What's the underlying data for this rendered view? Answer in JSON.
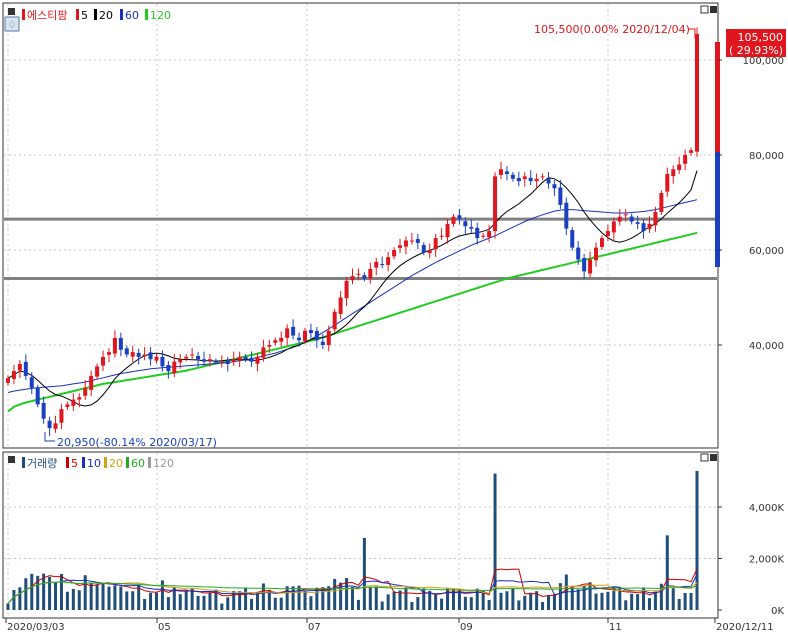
{
  "price_panel": {
    "stock_name": "에스티팜",
    "ma_legend": [
      {
        "label": "5",
        "color": "#000000"
      },
      {
        "label": "20",
        "color": "#000000"
      },
      {
        "label": "60",
        "color": "#1a2fbf"
      },
      {
        "label": "120",
        "color": "#22cc22"
      }
    ],
    "current_price_badge": "105,500",
    "current_change_badge": "( 29.93%)",
    "high_annotation": "105,500(0.00% 2020/12/04)",
    "low_annotation": "20,950(-80.14% 2020/03/17)"
  },
  "volume_panel": {
    "title": "거래량",
    "ma_legend": [
      {
        "label": "5",
        "color": "#cc0000"
      },
      {
        "label": "10",
        "color": "#1a2fbf"
      },
      {
        "label": "20",
        "color": "#d4a017"
      },
      {
        "label": "60",
        "color": "#22aa22"
      },
      {
        "label": "120",
        "color": "#999999"
      }
    ]
  },
  "x_axis": {
    "labels": [
      "2020/03/03",
      "05",
      "07",
      "09",
      "11",
      "2020/12/11"
    ]
  },
  "colors": {
    "up": "#e0161e",
    "down": "#1a3fbf",
    "ma120": "#22cc22",
    "ma60": "#1a2fbf",
    "ma20": "#000000",
    "volume_bar": "#1f4e79",
    "support_line": "#808080"
  },
  "chart_data": {
    "type": "candlestick",
    "period": {
      "start": "2020/03/03",
      "end": "2020/12/11"
    },
    "price_axis": {
      "ticks": [
        "40,000",
        "60,000",
        "80,000",
        "100,000"
      ],
      "range": [
        20000,
        110000
      ]
    },
    "volume_axis": {
      "ticks": [
        "0K",
        "2,000K",
        "4,000K"
      ],
      "range": [
        0,
        6000
      ]
    },
    "horizontal_lines": [
      66500,
      54000
    ],
    "price_close": [
      33000,
      34500,
      36000,
      33500,
      31000,
      27500,
      24500,
      22500,
      23500,
      26500,
      27500,
      28500,
      29000,
      31000,
      33500,
      35500,
      37500,
      38500,
      41500,
      39000,
      38000,
      38500,
      37500,
      38000,
      37000,
      37500,
      35500,
      34500,
      36500,
      37000,
      37500,
      38000,
      37000,
      36500,
      37000,
      36500,
      36500,
      36000,
      37000,
      37500,
      37000,
      36500,
      37500,
      39500,
      40000,
      41000,
      41500,
      43500,
      42000,
      41000,
      43000,
      42500,
      41000,
      40000,
      43000,
      47000,
      50000,
      53500,
      54500,
      55000,
      54000,
      56000,
      57500,
      57000,
      58500,
      60000,
      61000,
      62000,
      62000,
      61500,
      59500,
      60000,
      62500,
      63000,
      65500,
      67000,
      66500,
      65000,
      64500,
      62500,
      63000,
      64000,
      75500,
      77000,
      76000,
      75000,
      74500,
      75500,
      74500,
      75000,
      75500,
      74000,
      73000,
      69500,
      64500,
      60500,
      58000,
      55500,
      58000,
      60500,
      62500,
      64000,
      66000,
      67000,
      67500,
      66000,
      65500,
      64000,
      65500,
      68000,
      72000,
      76000,
      77000,
      78000,
      80000,
      81000,
      105500
    ],
    "ma_120": [
      26000,
      27000,
      27500,
      27900,
      28200,
      28500,
      28800,
      29100,
      29400,
      29700,
      30000,
      30300,
      30600,
      30900,
      31200,
      31500,
      31800,
      32000,
      32200,
      32400,
      32600,
      32800,
      33000,
      33200,
      33400,
      33600,
      33800,
      34000,
      34200,
      34400,
      34600,
      34900,
      35200,
      35500,
      35800,
      36100,
      36400,
      36700,
      37000,
      37300,
      37600,
      37900,
      38200,
      38500,
      38800,
      39100,
      39400,
      39700,
      40000,
      40300,
      40600,
      40900,
      41200,
      41600,
      42000,
      42400,
      42800,
      43200,
      43600,
      44000,
      44400,
      44800,
      45200,
      45600,
      46000,
      46400,
      46800,
      47200,
      47600,
      48000,
      48400,
      48800,
      49200,
      49600,
      50000,
      50400,
      50800,
      51200,
      51600,
      52000,
      52400,
      52800,
      53200,
      53600,
      54000,
      54300,
      54600,
      54900,
      55200,
      55500,
      55800,
      56100,
      56400,
      56700,
      57000,
      57300,
      57600,
      57900,
      58200,
      58500,
      58800,
      59100,
      59400,
      59700,
      60000,
      60300,
      60600,
      60900,
      61200,
      61500,
      61800,
      62100,
      62400,
      62700,
      63000,
      63300,
      63600
    ],
    "ma_60": [
      30000,
      30300,
      30500,
      30700,
      30900,
      31000,
      31100,
      31200,
      31300,
      31400,
      31600,
      31800,
      32000,
      32200,
      32500,
      32800,
      33100,
      33400,
      33700,
      34000,
      34200,
      34400,
      34600,
      34800,
      35000,
      35100,
      35200,
      35300,
      35400,
      35500,
      35600,
      35700,
      35800,
      35900,
      36000,
      36100,
      36200,
      36300,
      36500,
      36700,
      36900,
      37100,
      37400,
      37700,
      38000,
      38300,
      38700,
      39100,
      39500,
      40000,
      40600,
      41200,
      41900,
      42600,
      43400,
      44200,
      45000,
      45800,
      46600,
      47400,
      48200,
      49000,
      49800,
      50600,
      51400,
      52200,
      53000,
      53800,
      54600,
      55300,
      56000,
      56700,
      57400,
      58000,
      58600,
      59200,
      59800,
      60400,
      61000,
      61500,
      62000,
      62500,
      63000,
      63600,
      64200,
      64800,
      65400,
      66000,
      66500,
      67000,
      67400,
      67800,
      68200,
      68400,
      68500,
      68500,
      68400,
      68300,
      68200,
      68100,
      68000,
      67900,
      67800,
      67800,
      67800,
      67900,
      68000,
      68100,
      68300,
      68500,
      68800,
      69100,
      69400,
      69700,
      70000,
      70300,
      70600
    ]
  }
}
